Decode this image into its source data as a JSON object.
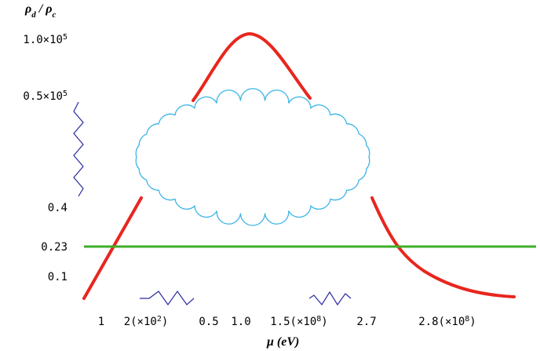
{
  "y_axis": {
    "label": [
      "ρ",
      "d",
      " / ",
      "ρ",
      "c"
    ],
    "tick_labels": [
      [
        "1.0×10",
        "5"
      ],
      [
        "0.5×10",
        "5"
      ],
      [
        "0.4"
      ],
      [
        "0.23"
      ],
      [
        "0.1"
      ]
    ]
  },
  "x_axis": {
    "label": [
      "μ",
      " (eV)"
    ],
    "tick_labels": [
      [
        "1"
      ],
      [
        "2(×10",
        "2",
        ")"
      ],
      [
        "0.5"
      ],
      [
        "1.0"
      ],
      [
        "1.5(×10",
        "8",
        ")"
      ],
      [
        "2.7"
      ],
      [
        "2.8(×10",
        "8",
        ")"
      ]
    ]
  }
}
